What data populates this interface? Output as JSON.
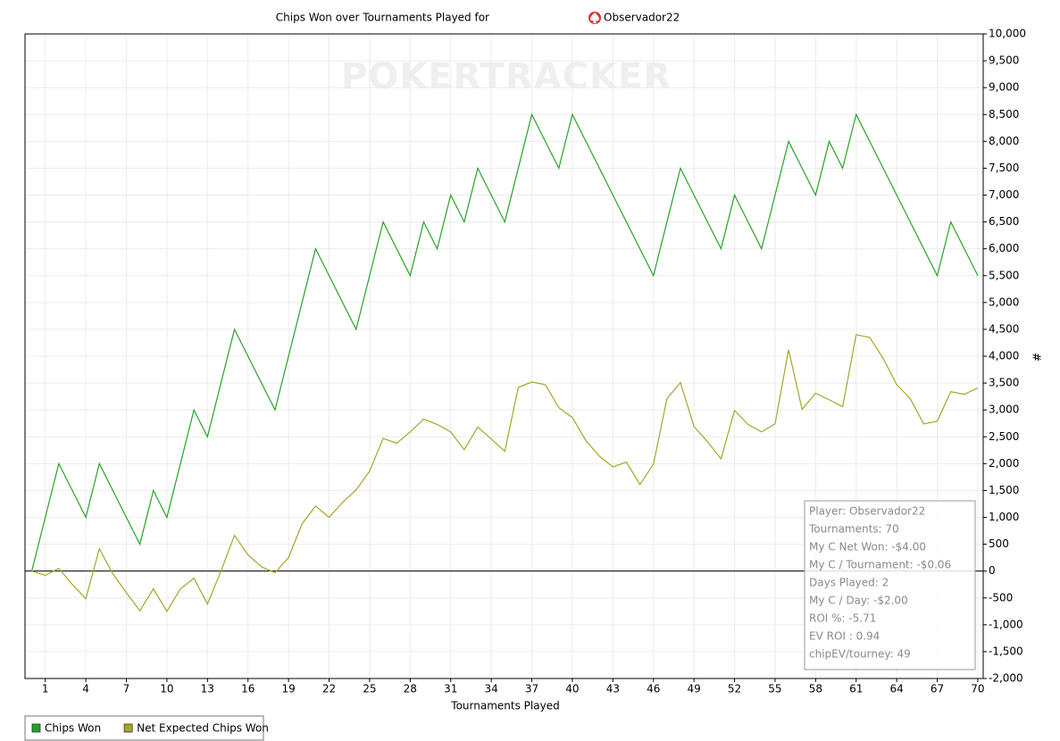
{
  "chart_data": {
    "type": "line",
    "title": "Chips Won over Tournaments Played for",
    "title_player": "Observador22",
    "watermark": "POKERTRACKER",
    "x_label": "Tournaments Played",
    "y_label": "#",
    "x": [
      0,
      1,
      2,
      3,
      4,
      5,
      6,
      7,
      8,
      9,
      10,
      11,
      12,
      13,
      14,
      15,
      16,
      17,
      18,
      19,
      20,
      21,
      22,
      23,
      24,
      25,
      26,
      27,
      28,
      29,
      30,
      31,
      32,
      33,
      34,
      35,
      36,
      37,
      38,
      39,
      40,
      41,
      42,
      43,
      44,
      45,
      46,
      47,
      48,
      49,
      50,
      51,
      52,
      53,
      54,
      55,
      56,
      57,
      58,
      59,
      60,
      61,
      62,
      63,
      64,
      65,
      66,
      67,
      68,
      69,
      70
    ],
    "series": [
      {
        "name": "Chips Won",
        "color": "#27a327",
        "values": [
          0,
          1000,
          2000,
          1500,
          1000,
          2000,
          1500,
          1000,
          500,
          1500,
          1000,
          2000,
          3000,
          2500,
          3500,
          4500,
          4000,
          3500,
          3000,
          4000,
          5000,
          6000,
          5500,
          5000,
          4500,
          5500,
          6500,
          6000,
          5500,
          6500,
          6000,
          7000,
          6500,
          7500,
          7000,
          6500,
          7500,
          8500,
          8000,
          7500,
          8500,
          8000,
          7500,
          7000,
          6500,
          6000,
          5500,
          6500,
          7500,
          7000,
          6500,
          6000,
          7000,
          6500,
          6000,
          7000,
          8000,
          7500,
          7000,
          8000,
          7500,
          8500,
          8000,
          7500,
          7000,
          6500,
          6000,
          5500,
          6500,
          6000,
          5500
        ]
      },
      {
        "name": "Net Expected Chips Won",
        "color": "#a6a62a",
        "values": [
          0,
          -80,
          50,
          -250,
          -515,
          415,
          -50,
          -400,
          -740,
          -330,
          -750,
          -330,
          -130,
          -615,
          0,
          665,
          300,
          80,
          -30,
          250,
          880,
          1210,
          1000,
          1280,
          1510,
          1860,
          2470,
          2380,
          2590,
          2830,
          2730,
          2590,
          2260,
          2680,
          2460,
          2230,
          3420,
          3520,
          3470,
          3040,
          2860,
          2430,
          2140,
          1940,
          2030,
          1610,
          1990,
          3210,
          3510,
          2690,
          2410,
          2090,
          2990,
          2730,
          2590,
          2740,
          4120,
          3010,
          3310,
          3190,
          3060,
          4400,
          4350,
          3960,
          3470,
          3210,
          2740,
          2790,
          3340,
          3290,
          3410
        ]
      }
    ],
    "xlim": [
      -0.5,
      70.4
    ],
    "xticks": [
      1,
      4,
      7,
      10,
      13,
      16,
      19,
      22,
      25,
      28,
      31,
      34,
      37,
      40,
      43,
      46,
      49,
      52,
      55,
      58,
      61,
      64,
      67,
      70
    ],
    "ylim": [
      -2000,
      10000
    ],
    "yticks": [
      {
        "value": -2000,
        "label": "-2,000"
      },
      {
        "value": -1500,
        "label": "-1,500"
      },
      {
        "value": -1000,
        "label": "-1,000"
      },
      -500,
      0,
      500,
      {
        "value": 1000,
        "label": "1,000"
      },
      {
        "value": 1500,
        "label": "1,500"
      },
      {
        "value": 2000,
        "label": "2,000"
      },
      {
        "value": 2500,
        "label": "2,500"
      },
      {
        "value": 3000,
        "label": "3,000"
      },
      {
        "value": 3500,
        "label": "3,500"
      },
      {
        "value": 4000,
        "label": "4,000"
      },
      {
        "value": 4500,
        "label": "4,500"
      },
      {
        "value": 5000,
        "label": "5,000"
      },
      {
        "value": 5500,
        "label": "5,500"
      },
      {
        "value": 6000,
        "label": "6,000"
      },
      {
        "value": 6500,
        "label": "6,500"
      },
      {
        "value": 7000,
        "label": "7,000"
      },
      {
        "value": 7500,
        "label": "7,500"
      },
      {
        "value": 8000,
        "label": "8,000"
      },
      {
        "value": 8500,
        "label": "8,500"
      },
      {
        "value": 9000,
        "label": "9,000"
      },
      {
        "value": 9500,
        "label": "9,500"
      },
      {
        "value": 10000,
        "label": "10,000"
      }
    ],
    "grid": true,
    "legend": "bottom-left",
    "stats_box": [
      "Player: Observador22",
      "Tournaments: 70",
      "My C Net Won: -$4.00",
      "My C / Tournament: -$0.06",
      "Days Played: 2",
      "My C / Day: -$2.00",
      "ROI %: -5.71",
      "EV ROI : 0.94",
      "chipEV/tourney: 49"
    ]
  }
}
